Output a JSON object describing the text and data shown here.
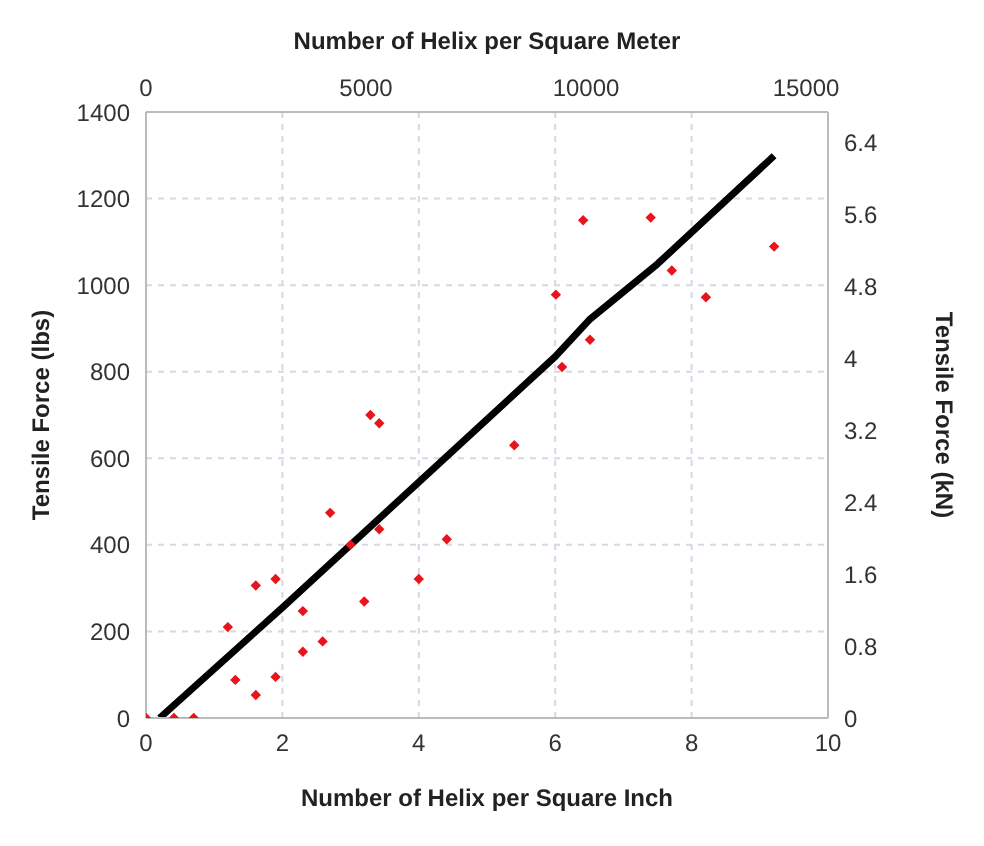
{
  "chart_data": {
    "type": "scatter",
    "xlabel": "Number of Helix per Square Inch",
    "ylabel": "Tensile Force (lbs)",
    "x2label": "Number of Helix per Square Meter",
    "y2label": "Tensile Force (kN)",
    "xlim": [
      0,
      10
    ],
    "xticks": [
      0,
      2,
      4,
      6,
      8,
      10
    ],
    "ylim": [
      0,
      1400
    ],
    "yticks": [
      0,
      200,
      400,
      600,
      800,
      1000,
      1200,
      1400
    ],
    "x2lim": [
      0,
      15500
    ],
    "x2ticks": [
      0,
      5000,
      10000,
      15000
    ],
    "y2lim": [
      0,
      6.74
    ],
    "y2ticks": [
      0,
      0.8,
      1.6,
      2.4,
      3.2,
      4,
      4.8,
      5.6,
      6.4
    ],
    "grid": true,
    "legend": false,
    "series": [
      {
        "color": "#e8141c",
        "marker": "diamond",
        "x": [
          0,
          0.41,
          0.7,
          1.2,
          1.31,
          1.61,
          1.61,
          1.9,
          1.9,
          2.3,
          2.3,
          2.59,
          2.7,
          3.0,
          3.2,
          3.29,
          3.42,
          3.42,
          4.0,
          4.41,
          5.4,
          6.01,
          6.1,
          6.41,
          6.51,
          7.4,
          7.71,
          8.21,
          9.21
        ],
        "values": [
          0,
          0,
          0,
          210,
          88,
          306,
          53,
          321,
          95,
          247,
          153,
          177,
          474,
          400,
          269,
          700,
          681,
          436,
          321,
          413,
          630,
          978,
          811,
          1150,
          874,
          1156,
          1034,
          972,
          1089
        ]
      },
      {
        "type": "line",
        "color": "#000000",
        "marker": "none",
        "line_style": "solid",
        "x": [
          0.2,
          2,
          4,
          6,
          6.5,
          7.5,
          9.21
        ],
        "values": [
          0,
          255,
          545,
          835,
          920,
          1049,
          1299
        ]
      }
    ]
  }
}
